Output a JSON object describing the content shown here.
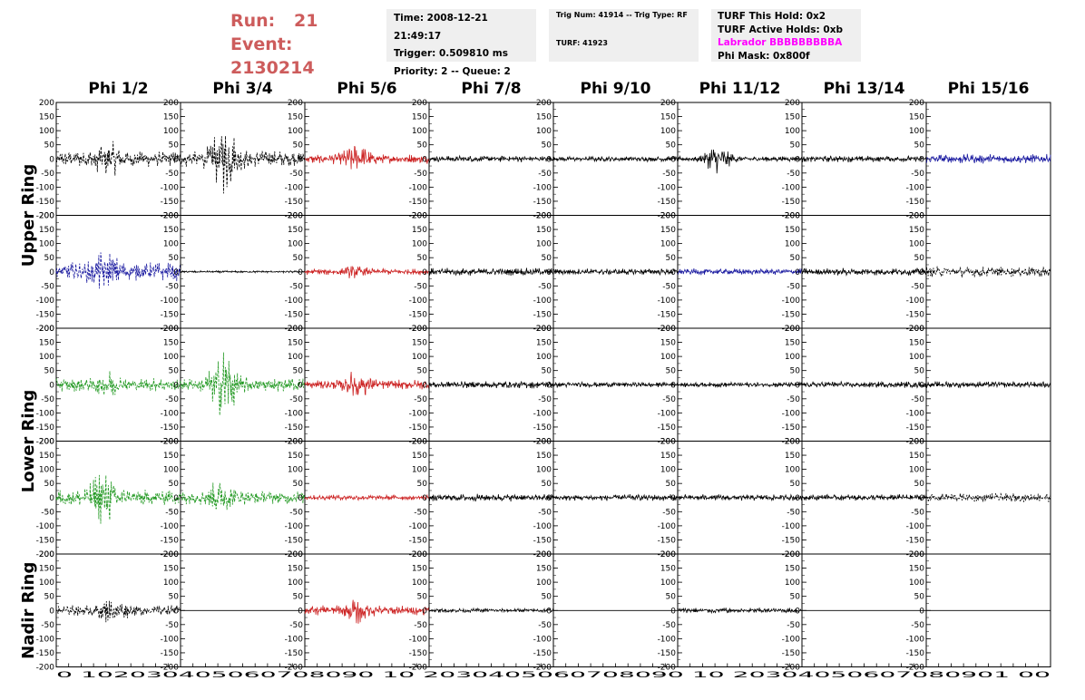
{
  "header": {
    "run_label": "Run:",
    "run_value": "21",
    "event_label": "Event:",
    "event_value": "2130214",
    "time": "Time: 2008-12-21 21:49:17",
    "trigger": "Trigger: 0.509810 ms",
    "priority": "Priority: 2 -- Queue: 2",
    "trig_num": "Trig Num: 41914 -- Trig Type: RF",
    "turf": "TURF: 41923",
    "turf_hold": "TURF This Hold: 0x2",
    "turf_active": "TURF Active Holds: 0xb",
    "labrador": "Labrador BBBBBBBBBA",
    "phi_mask": "Phi Mask: 0x800f"
  },
  "chart_data": {
    "type": "line",
    "column_titles": [
      "Phi 1/2",
      "Phi 3/4",
      "Phi 5/6",
      "Phi 7/8",
      "Phi 9/10",
      "Phi 11/12",
      "Phi 13/14",
      "Phi 15/16"
    ],
    "ring_labels": [
      {
        "text": "Upper Ring",
        "rows": [
          0,
          1
        ]
      },
      {
        "text": "Lower Ring",
        "rows": [
          2,
          3
        ]
      },
      {
        "text": "Nadir Ring",
        "rows": [
          4
        ]
      }
    ],
    "xlim": [
      0,
      100
    ],
    "ylim": [
      -200,
      200
    ],
    "x_ticks": [
      "0",
      "10",
      "20",
      "30",
      "40",
      "50",
      "60",
      "70",
      "80",
      "90",
      "100"
    ],
    "x_tick_labels_shown": "0 102030405060708090 10 2030405060708090 10 20304050607080901 00",
    "y_ticks": [
      200,
      150,
      100,
      50,
      0,
      -50,
      -100,
      -150,
      -200
    ],
    "colors": {
      "black": "#000000",
      "red": "#cc2222",
      "blue": "#1a1aa0",
      "green": "#229922"
    },
    "panels": [
      [
        {
          "color": "black",
          "dashed": true,
          "amp": 30,
          "burst": 40,
          "center": 42
        },
        {
          "color": "black",
          "dashed": true,
          "amp": 30,
          "burst": 120,
          "center": 35
        },
        {
          "color": "red",
          "dashed": false,
          "amp": 18,
          "burst": 45,
          "center": 42
        },
        {
          "color": "black",
          "dashed": false,
          "amp": 12,
          "burst": 0,
          "center": 50
        },
        {
          "color": "black",
          "dashed": false,
          "amp": 10,
          "burst": 0,
          "center": 50
        },
        {
          "color": "black",
          "dashed": false,
          "amp": 10,
          "burst": 45,
          "center": 32
        },
        {
          "color": "black",
          "dashed": false,
          "amp": 12,
          "burst": 0,
          "center": 50
        },
        {
          "color": "blue",
          "dashed": false,
          "amp": 18,
          "burst": 0,
          "center": 50
        }
      ],
      [
        {
          "color": "blue",
          "dashed": true,
          "amp": 35,
          "burst": 55,
          "center": 40
        },
        {
          "color": "black",
          "dashed": false,
          "amp": 4,
          "burst": 0,
          "center": 50
        },
        {
          "color": "red",
          "dashed": false,
          "amp": 12,
          "burst": 15,
          "center": 40
        },
        {
          "color": "black",
          "dashed": false,
          "amp": 14,
          "burst": 0,
          "center": 50
        },
        {
          "color": "black",
          "dashed": false,
          "amp": 12,
          "burst": 0,
          "center": 50
        },
        {
          "color": "blue",
          "dashed": false,
          "amp": 12,
          "burst": 0,
          "center": 50
        },
        {
          "color": "black",
          "dashed": false,
          "amp": 14,
          "burst": 0,
          "center": 50
        },
        {
          "color": "black",
          "dashed": true,
          "amp": 20,
          "burst": 0,
          "center": 50
        }
      ],
      [
        {
          "color": "green",
          "dashed": true,
          "amp": 25,
          "burst": 30,
          "center": 42
        },
        {
          "color": "green",
          "dashed": true,
          "amp": 25,
          "burst": 120,
          "center": 35
        },
        {
          "color": "red",
          "dashed": false,
          "amp": 18,
          "burst": 40,
          "center": 42
        },
        {
          "color": "black",
          "dashed": false,
          "amp": 14,
          "burst": 0,
          "center": 50
        },
        {
          "color": "black",
          "dashed": false,
          "amp": 10,
          "burst": 0,
          "center": 50
        },
        {
          "color": "black",
          "dashed": false,
          "amp": 10,
          "burst": 0,
          "center": 50
        },
        {
          "color": "black",
          "dashed": false,
          "amp": 12,
          "burst": 0,
          "center": 50
        },
        {
          "color": "black",
          "dashed": false,
          "amp": 12,
          "burst": 0,
          "center": 50
        }
      ],
      [
        {
          "color": "green",
          "dashed": true,
          "amp": 30,
          "burst": 90,
          "center": 38
        },
        {
          "color": "green",
          "dashed": true,
          "amp": 25,
          "burst": 55,
          "center": 32
        },
        {
          "color": "red",
          "dashed": false,
          "amp": 10,
          "burst": 0,
          "center": 50
        },
        {
          "color": "black",
          "dashed": false,
          "amp": 14,
          "burst": 0,
          "center": 50
        },
        {
          "color": "black",
          "dashed": false,
          "amp": 12,
          "burst": 0,
          "center": 50
        },
        {
          "color": "black",
          "dashed": false,
          "amp": 12,
          "burst": 0,
          "center": 50
        },
        {
          "color": "black",
          "dashed": false,
          "amp": 12,
          "burst": 0,
          "center": 50
        },
        {
          "color": "black",
          "dashed": true,
          "amp": 16,
          "burst": 0,
          "center": 50
        }
      ],
      [
        {
          "color": "black",
          "dashed": true,
          "amp": 20,
          "burst": 40,
          "center": 45
        },
        {
          "color": "black",
          "dashed": false,
          "amp": 0,
          "burst": 0,
          "center": 50
        },
        {
          "color": "red",
          "dashed": false,
          "amp": 18,
          "burst": 35,
          "center": 42
        },
        {
          "color": "black",
          "dashed": false,
          "amp": 8,
          "burst": 0,
          "center": 50
        },
        {
          "color": "black",
          "dashed": false,
          "amp": 0,
          "burst": 0,
          "center": 50
        },
        {
          "color": "black",
          "dashed": false,
          "amp": 10,
          "burst": 0,
          "center": 50
        },
        {
          "color": "black",
          "dashed": false,
          "amp": 0,
          "burst": 0,
          "center": 50
        },
        {
          "color": "black",
          "dashed": false,
          "amp": 0,
          "burst": 0,
          "center": 50
        }
      ]
    ]
  }
}
